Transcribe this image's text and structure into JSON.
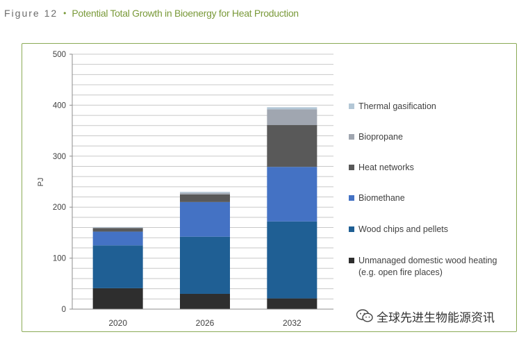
{
  "header": {
    "figure_label": "Figure 12",
    "bullet": "•",
    "title": "Potential Total Growth in Bioenergy for Heat Production"
  },
  "watermark": {
    "text": "全球先进生物能源资讯",
    "icon": "wechat-logo-icon"
  },
  "chart_data": {
    "type": "bar",
    "stacked": true,
    "title": "Potential Total Growth in Bioenergy for Heat Production",
    "xlabel": "",
    "ylabel": "PJ",
    "ylim": [
      0,
      500
    ],
    "yticks": [
      0,
      100,
      200,
      300,
      400,
      500
    ],
    "ytick_labels": [
      "0",
      "100",
      "200",
      "300",
      "400",
      "500"
    ],
    "grid_step": 20,
    "categories": [
      "2020",
      "2026",
      "2032"
    ],
    "series": [
      {
        "name": "Unmanaged domestic wood heating\n(e.g. open fire places)",
        "color": "#2e2e2e",
        "values": [
          41,
          30,
          21
        ]
      },
      {
        "name": "Wood chips and pellets",
        "color": "#1f5f94",
        "values": [
          84,
          112,
          151
        ]
      },
      {
        "name": "Biomethane",
        "color": "#4472c4",
        "values": [
          27,
          68,
          107
        ]
      },
      {
        "name": "Heat networks",
        "color": "#595959",
        "values": [
          7,
          15,
          82
        ]
      },
      {
        "name": "Biopropane",
        "color": "#a0a6b0",
        "values": [
          1,
          3,
          31
        ]
      },
      {
        "name": "Thermal gasification",
        "color": "#b3c7d6",
        "values": [
          1,
          2,
          4
        ]
      }
    ],
    "legend_position": "right"
  }
}
